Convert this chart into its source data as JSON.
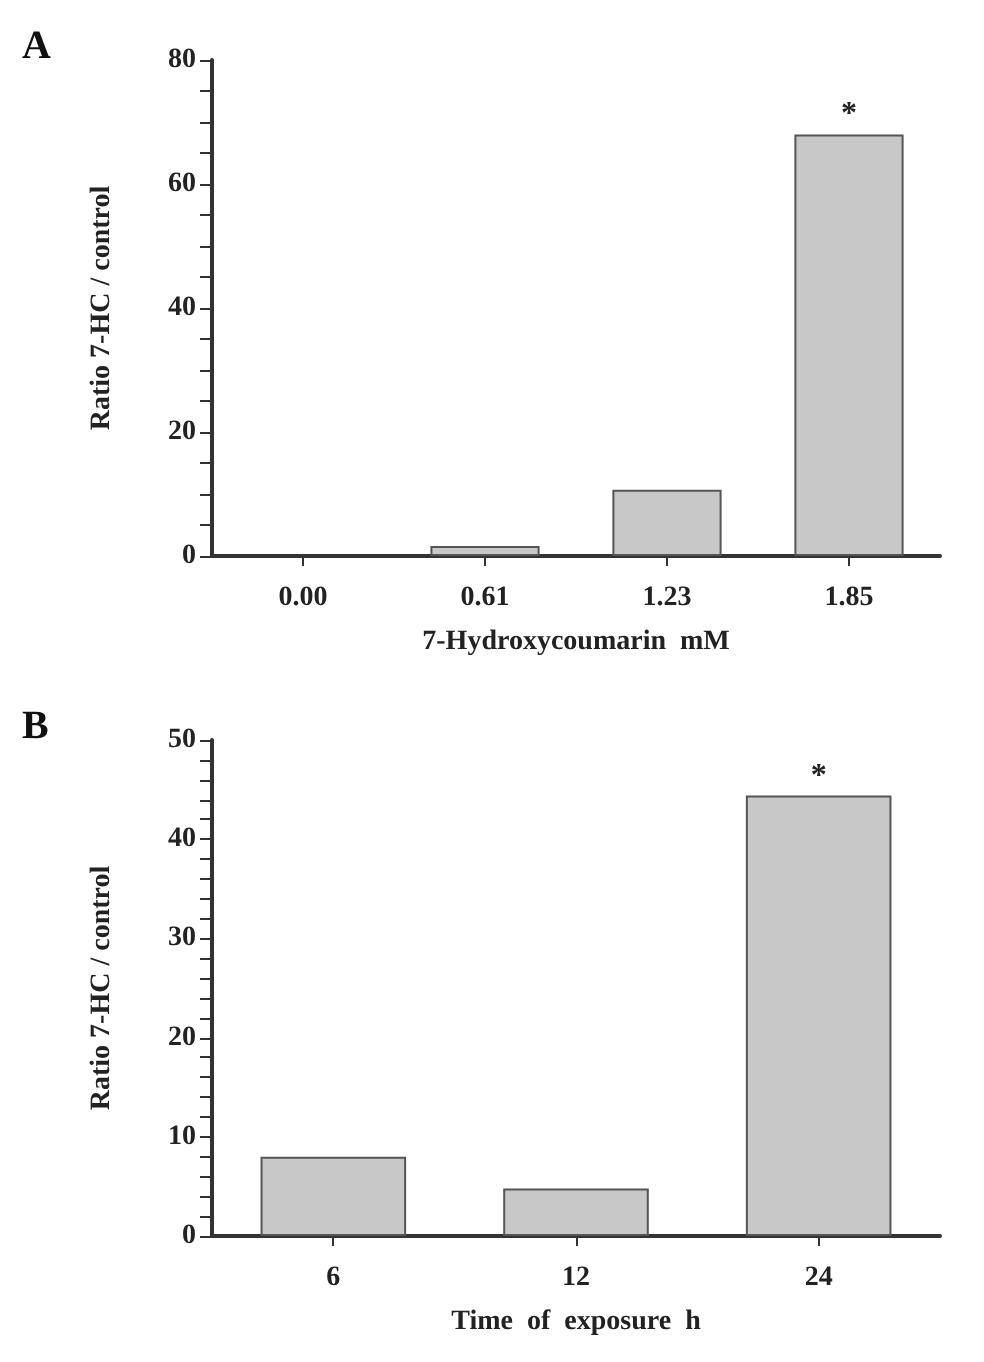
{
  "chart_data": [
    {
      "type": "bar",
      "title": "A",
      "xlabel": "7-Hydroxycoumarin  mM",
      "ylabel": "Ratio 7-HC / control",
      "categories": [
        "0.00",
        "0.61",
        "1.23",
        "1.85"
      ],
      "values": [
        null,
        1.6,
        10.7,
        68
      ],
      "color": "#c8c8c8",
      "ylim": [
        0,
        80
      ],
      "yticks": [
        0,
        {
          "value": 5,
          "label": null
        },
        {
          "value": 10,
          "label": null
        },
        {
          "value": 15,
          "label": null
        },
        20,
        {
          "value": 25,
          "label": null
        },
        {
          "value": 30,
          "label": null
        },
        {
          "value": 35,
          "label": null
        },
        40,
        {
          "value": 45,
          "label": null
        },
        {
          "value": 50,
          "label": null
        },
        {
          "value": 55,
          "label": null
        },
        60,
        {
          "value": 65,
          "label": null
        },
        {
          "value": 70,
          "label": null
        },
        {
          "value": 75,
          "label": null
        },
        80
      ],
      "annotations": [
        {
          "text": "*",
          "x": "1.85",
          "y": 68
        }
      ],
      "grid": false
    },
    {
      "type": "bar",
      "title": "B",
      "xlabel": "Time  of  exposure  h",
      "ylabel": "Ratio 7-HC / control",
      "categories": [
        "6",
        "12",
        "24"
      ],
      "values": [
        8.0,
        4.8,
        44.4
      ],
      "color": "#c8c8c8",
      "ylim": [
        0,
        50
      ],
      "yticks": [
        0,
        {
          "value": 2,
          "label": null
        },
        {
          "value": 4,
          "label": null
        },
        {
          "value": 6,
          "label": null
        },
        {
          "value": 8,
          "label": null
        },
        10,
        {
          "value": 12,
          "label": null
        },
        {
          "value": 14,
          "label": null
        },
        {
          "value": 16,
          "label": null
        },
        {
          "value": 18,
          "label": null
        },
        20,
        {
          "value": 22,
          "label": null
        },
        {
          "value": 24,
          "label": null
        },
        {
          "value": 26,
          "label": null
        },
        {
          "value": 28,
          "label": null
        },
        30,
        {
          "value": 32,
          "label": null
        },
        {
          "value": 34,
          "label": null
        },
        {
          "value": 36,
          "label": null
        },
        {
          "value": 38,
          "label": null
        },
        40,
        {
          "value": 42,
          "label": null
        },
        {
          "value": 44,
          "label": null
        },
        {
          "value": 46,
          "label": null
        },
        {
          "value": 48,
          "label": null
        },
        50
      ],
      "annotations": [
        {
          "text": "*",
          "x": "24",
          "y": 44.4
        }
      ],
      "grid": false
    }
  ]
}
